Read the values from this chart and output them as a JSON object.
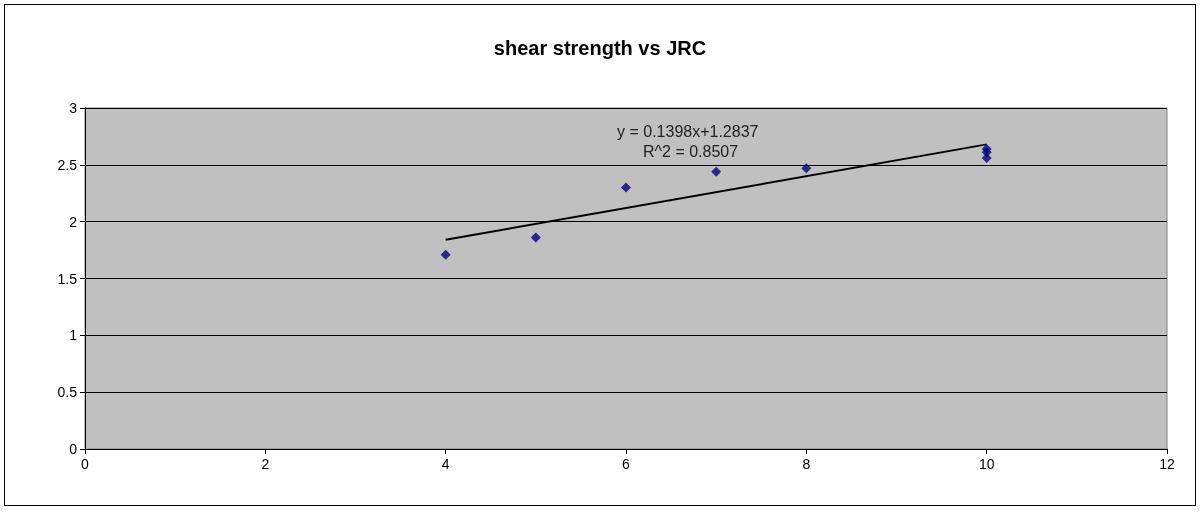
{
  "chart_data": {
    "type": "scatter",
    "title": "shear strength vs JRC",
    "series": [
      {
        "color": "#000080",
        "marker": "diamond",
        "x": [
          4,
          5,
          6,
          7,
          8,
          10,
          10,
          10
        ],
        "values": [
          1.71,
          1.86,
          2.3,
          2.44,
          2.47,
          2.64,
          2.61,
          2.56
        ]
      },
      {
        "type": "line",
        "color": "#000000",
        "marker": "none",
        "x": [
          4,
          10
        ],
        "values": [
          1.84,
          2.68
        ]
      }
    ],
    "annotations": [
      "y = 0.1398x+1.2837",
      "R^2 = 0.8507"
    ],
    "xlim": [
      0,
      12
    ],
    "xticks": [
      0,
      2,
      4,
      6,
      8,
      10,
      12
    ],
    "ylim": [
      0,
      3
    ],
    "yticks": [
      0,
      0.5,
      1,
      1.5,
      2,
      2.5,
      3
    ],
    "grid": "y"
  }
}
